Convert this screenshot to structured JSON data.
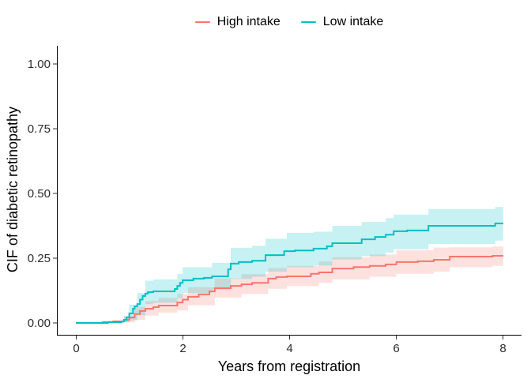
{
  "figure": {
    "legend": {
      "items": [
        {
          "label": "High intake",
          "color": "#F8766D"
        },
        {
          "label": "Low intake",
          "color": "#00BFC4"
        }
      ]
    },
    "x_axis": {
      "title": "Years from registration",
      "ticks": [
        "0",
        "2",
        "4",
        "6",
        "8"
      ]
    },
    "y_axis": {
      "title": "CIF of diabetic retinopathy",
      "ticks": [
        "0.00",
        "0.25",
        "0.50",
        "0.75",
        "1.00"
      ]
    }
  },
  "chart_data": {
    "type": "line",
    "subtype": "step_cumulative_incidence_with_confidence_bands",
    "title": "",
    "xlabel": "Years from registration",
    "ylabel": "CIF of diabetic retinopathy",
    "xlim": [
      0,
      8
    ],
    "ylim": [
      0,
      1
    ],
    "x_ticks": [
      0,
      2,
      4,
      6,
      8
    ],
    "y_ticks": [
      0.0,
      0.25,
      0.5,
      0.75,
      1.0
    ],
    "grid": false,
    "legend_position": "top-center",
    "band_opacity": 0.22,
    "series": [
      {
        "name": "High intake",
        "color": "#F8766D",
        "steps": [
          [
            0,
            0
          ],
          [
            0.5,
            0.003
          ],
          [
            0.7,
            0.006
          ],
          [
            0.9,
            0.012
          ],
          [
            1.0,
            0.021
          ],
          [
            1.1,
            0.034
          ],
          [
            1.2,
            0.046
          ],
          [
            1.3,
            0.055
          ],
          [
            1.45,
            0.061
          ],
          [
            1.55,
            0.067
          ],
          [
            1.9,
            0.079
          ],
          [
            2.0,
            0.09
          ],
          [
            2.1,
            0.101
          ],
          [
            2.3,
            0.11
          ],
          [
            2.5,
            0.122
          ],
          [
            2.6,
            0.134
          ],
          [
            2.9,
            0.143
          ],
          [
            3.1,
            0.149
          ],
          [
            3.3,
            0.155
          ],
          [
            3.6,
            0.171
          ],
          [
            3.75,
            0.177
          ],
          [
            3.95,
            0.18
          ],
          [
            4.4,
            0.19
          ],
          [
            4.55,
            0.195
          ],
          [
            4.8,
            0.21
          ],
          [
            5.2,
            0.216
          ],
          [
            5.5,
            0.22
          ],
          [
            5.8,
            0.226
          ],
          [
            6.0,
            0.235
          ],
          [
            6.4,
            0.238
          ],
          [
            6.7,
            0.244
          ],
          [
            7.0,
            0.256
          ],
          [
            7.8,
            0.259
          ],
          [
            8,
            0.259
          ]
        ],
        "band": [
          [
            0.5,
            0,
            0.008
          ],
          [
            0.9,
            0.002,
            0.025
          ],
          [
            1.1,
            0.012,
            0.062
          ],
          [
            1.3,
            0.028,
            0.085
          ],
          [
            1.55,
            0.04,
            0.097
          ],
          [
            1.9,
            0.048,
            0.112
          ],
          [
            2.1,
            0.068,
            0.138
          ],
          [
            2.6,
            0.098,
            0.172
          ],
          [
            3.1,
            0.112,
            0.188
          ],
          [
            3.6,
            0.132,
            0.212
          ],
          [
            3.95,
            0.142,
            0.22
          ],
          [
            4.55,
            0.155,
            0.237
          ],
          [
            4.8,
            0.168,
            0.254
          ],
          [
            5.5,
            0.178,
            0.264
          ],
          [
            6.0,
            0.19,
            0.281
          ],
          [
            6.7,
            0.198,
            0.291
          ],
          [
            7.0,
            0.215,
            0.292
          ],
          [
            7.8,
            0.22,
            0.295
          ],
          [
            8,
            0.22,
            0.295
          ]
        ]
      },
      {
        "name": "Low intake",
        "color": "#00BFC4",
        "steps": [
          [
            0,
            0
          ],
          [
            0.6,
            0.003
          ],
          [
            0.85,
            0.006
          ],
          [
            0.9,
            0.012
          ],
          [
            0.95,
            0.021
          ],
          [
            1.0,
            0.037
          ],
          [
            1.07,
            0.055
          ],
          [
            1.1,
            0.064
          ],
          [
            1.15,
            0.073
          ],
          [
            1.2,
            0.09
          ],
          [
            1.25,
            0.104
          ],
          [
            1.3,
            0.113
          ],
          [
            1.35,
            0.119
          ],
          [
            1.45,
            0.122
          ],
          [
            1.85,
            0.131
          ],
          [
            1.9,
            0.143
          ],
          [
            1.95,
            0.155
          ],
          [
            2.0,
            0.165
          ],
          [
            2.2,
            0.171
          ],
          [
            2.4,
            0.174
          ],
          [
            2.55,
            0.18
          ],
          [
            2.85,
            0.207
          ],
          [
            2.9,
            0.229
          ],
          [
            3.05,
            0.235
          ],
          [
            3.3,
            0.24
          ],
          [
            3.55,
            0.262
          ],
          [
            3.9,
            0.277
          ],
          [
            4.1,
            0.28
          ],
          [
            4.45,
            0.287
          ],
          [
            4.7,
            0.296
          ],
          [
            4.8,
            0.308
          ],
          [
            5.35,
            0.323
          ],
          [
            5.6,
            0.332
          ],
          [
            5.8,
            0.341
          ],
          [
            5.95,
            0.354
          ],
          [
            6.2,
            0.357
          ],
          [
            6.6,
            0.375
          ],
          [
            7.85,
            0.384
          ],
          [
            8,
            0.384
          ]
        ],
        "band": [
          [
            0.6,
            0,
            0.008
          ],
          [
            0.9,
            0.002,
            0.028
          ],
          [
            1.0,
            0.01,
            0.07
          ],
          [
            1.15,
            0.03,
            0.115
          ],
          [
            1.3,
            0.072,
            0.163
          ],
          [
            1.45,
            0.078,
            0.168
          ],
          [
            1.9,
            0.095,
            0.19
          ],
          [
            2.0,
            0.115,
            0.215
          ],
          [
            2.55,
            0.13,
            0.232
          ],
          [
            2.9,
            0.17,
            0.29
          ],
          [
            3.3,
            0.178,
            0.298
          ],
          [
            3.55,
            0.198,
            0.325
          ],
          [
            3.95,
            0.215,
            0.348
          ],
          [
            4.45,
            0.222,
            0.352
          ],
          [
            4.8,
            0.245,
            0.375
          ],
          [
            5.35,
            0.258,
            0.39
          ],
          [
            5.8,
            0.272,
            0.405
          ],
          [
            5.95,
            0.285,
            0.418
          ],
          [
            6.6,
            0.305,
            0.44
          ],
          [
            7.85,
            0.318,
            0.448
          ],
          [
            8,
            0.318,
            0.448
          ]
        ]
      }
    ]
  }
}
